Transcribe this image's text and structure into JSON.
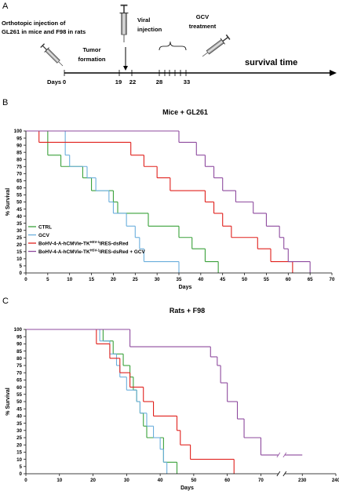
{
  "panel_a": {
    "label": "A",
    "injection_text": [
      "Orthotopic injection of",
      "GL261 in mice and F98 in rats"
    ],
    "tumor_text": [
      "Tumor",
      "formation"
    ],
    "viral_text": [
      "Viral",
      "injection"
    ],
    "gcv_text": [
      "GCV",
      "treatment"
    ],
    "days_label": "Days",
    "day_ticks": [
      0,
      19,
      22,
      28,
      33
    ],
    "survival_label": "survival time"
  },
  "panel_labels": [
    "B",
    "C"
  ],
  "chart_data": [
    {
      "type": "step",
      "title": "Mice + GL261",
      "xlabel": "Days",
      "ylabel": "% Survival",
      "xlim": [
        0,
        70
      ],
      "xticks": [
        0,
        5,
        10,
        15,
        20,
        25,
        30,
        35,
        40,
        45,
        50,
        55,
        60,
        65,
        70
      ],
      "ylim": [
        0,
        100
      ],
      "yticks": [
        0,
        5,
        10,
        15,
        20,
        25,
        30,
        35,
        40,
        45,
        50,
        55,
        60,
        65,
        70,
        75,
        80,
        85,
        90,
        95,
        100
      ],
      "legend": "lower left",
      "series": [
        {
          "name": [
            "CTRL"
          ],
          "color": "#3aa13a",
          "x": [
            0,
            5,
            8,
            13,
            15,
            20,
            21,
            28,
            35,
            38,
            41,
            44
          ],
          "values": [
            100,
            83,
            75,
            67,
            58,
            50,
            42,
            33,
            25,
            17,
            8,
            0
          ]
        },
        {
          "name": [
            "GCV"
          ],
          "color": "#6aaedc",
          "x": [
            0,
            9,
            10,
            14,
            16,
            19,
            20,
            23,
            25,
            26,
            27,
            35
          ],
          "values": [
            100,
            83,
            75,
            67,
            58,
            50,
            42,
            33,
            25,
            17,
            8,
            0
          ]
        },
        {
          "name": [
            "BoHV-4-A-hCMVie-TK",
            "HSV-1",
            "IRES-dsRed"
          ],
          "color": "#e0201c",
          "x": [
            0,
            3,
            24,
            27,
            30,
            33,
            41,
            43,
            45,
            47,
            53,
            56,
            61
          ],
          "values": [
            100,
            92,
            83,
            75,
            67,
            58,
            50,
            42,
            33,
            25,
            17,
            8,
            0
          ]
        },
        {
          "name": [
            "BoHV-4-A-hCMVie-TK",
            "HSV-1",
            "IRES-dsRed + GCV"
          ],
          "color": "#8e4a9e",
          "x": [
            0,
            35,
            39,
            41,
            43,
            45,
            48,
            52,
            55,
            58,
            59,
            60,
            65
          ],
          "values": [
            100,
            92,
            83,
            75,
            67,
            58,
            50,
            42,
            33,
            25,
            17,
            8,
            0
          ]
        }
      ]
    },
    {
      "type": "step",
      "title": "Rats + F98",
      "xlabel": "Days",
      "ylabel": "% Survival",
      "xlim": [
        0,
        240
      ],
      "xbreak": [
        75,
        225
      ],
      "xticks": [
        0,
        10,
        20,
        30,
        40,
        50,
        60,
        70,
        230,
        240
      ],
      "ylim": [
        0,
        100
      ],
      "yticks": [
        0,
        5,
        10,
        15,
        20,
        25,
        30,
        35,
        40,
        45,
        50,
        55,
        60,
        65,
        70,
        75,
        80,
        85,
        90,
        95,
        100
      ],
      "series": [
        {
          "color": "#3aa13a",
          "x": [
            0,
            23,
            26,
            29,
            31,
            32,
            33,
            34,
            35,
            36,
            41,
            45
          ],
          "values": [
            100,
            92,
            83,
            75,
            67,
            58,
            50,
            42,
            33,
            25,
            8,
            0
          ]
        },
        {
          "color": "#6aaedc",
          "x": [
            0,
            22,
            25,
            27,
            28,
            30,
            33,
            34,
            36,
            38,
            40,
            41,
            42
          ],
          "values": [
            100,
            92,
            83,
            75,
            67,
            58,
            50,
            42,
            33,
            25,
            17,
            8,
            0
          ]
        },
        {
          "color": "#e0201c",
          "x": [
            0,
            21,
            25,
            28,
            31,
            35,
            38,
            45,
            46,
            49,
            62
          ],
          "values": [
            100,
            90,
            80,
            70,
            60,
            50,
            40,
            30,
            20,
            10,
            0
          ]
        },
        {
          "color": "#8e4a9e",
          "x": [
            0,
            31,
            55,
            57,
            58,
            60,
            63,
            65,
            70,
            230
          ],
          "values": [
            100,
            88,
            81,
            75,
            63,
            50,
            38,
            25,
            13,
            13
          ]
        }
      ]
    }
  ]
}
